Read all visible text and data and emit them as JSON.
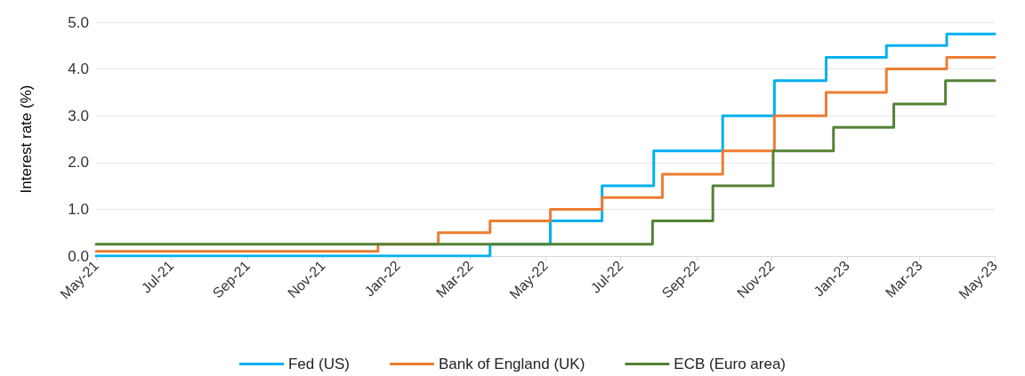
{
  "chart_data": {
    "type": "step",
    "ylabel": "Interest rate (%)",
    "series": [
      {
        "name": "Fed (US)",
        "color": "#00b0f0",
        "x": [
          "2021-05-01",
          "2022-03-17",
          "2022-05-05",
          "2022-06-16",
          "2022-07-28",
          "2022-09-22",
          "2022-11-03",
          "2022-12-15",
          "2023-02-02",
          "2023-03-23",
          "2023-05-01"
        ],
        "values": [
          0,
          0.25,
          0.75,
          1.5,
          2.25,
          3.0,
          3.75,
          4.25,
          4.5,
          4.75,
          4.75
        ]
      },
      {
        "name": "Bank of England (UK)",
        "color": "#ed7d31",
        "x": [
          "2021-05-01",
          "2021-12-16",
          "2022-02-03",
          "2022-03-17",
          "2022-05-05",
          "2022-06-16",
          "2022-08-04",
          "2022-09-22",
          "2022-11-03",
          "2022-12-15",
          "2023-02-02",
          "2023-03-23",
          "2023-05-01"
        ],
        "values": [
          0.1,
          0.25,
          0.5,
          0.75,
          1.0,
          1.25,
          1.75,
          2.25,
          3.0,
          3.5,
          4.0,
          4.25,
          4.25
        ]
      },
      {
        "name": "ECB (Euro area)",
        "color": "#548235",
        "x": [
          "2021-05-01",
          "2022-07-27",
          "2022-09-14",
          "2022-11-02",
          "2022-12-21",
          "2023-02-08",
          "2023-03-22",
          "2023-05-01"
        ],
        "values": [
          0.25,
          0.75,
          1.5,
          2.25,
          2.75,
          3.25,
          3.75,
          3.75
        ]
      }
    ],
    "xlim": [
      "2021-05-01",
      "2023-05-01"
    ],
    "xticks": [
      {
        "value": "2021-05-01",
        "label": "May-21"
      },
      {
        "value": "2021-07-01",
        "label": "Jul-21"
      },
      {
        "value": "2021-09-01",
        "label": "Sep-21"
      },
      {
        "value": "2021-11-01",
        "label": "Nov-21"
      },
      {
        "value": "2022-01-01",
        "label": "Jan-22"
      },
      {
        "value": "2022-03-01",
        "label": "Mar-22"
      },
      {
        "value": "2022-05-01",
        "label": "May-22"
      },
      {
        "value": "2022-07-01",
        "label": "Jul-22"
      },
      {
        "value": "2022-09-01",
        "label": "Sep-22"
      },
      {
        "value": "2022-11-01",
        "label": "Nov-22"
      },
      {
        "value": "2023-01-01",
        "label": "Jan-23"
      },
      {
        "value": "2023-03-01",
        "label": "Mar-23"
      },
      {
        "value": "2023-05-01",
        "label": "May-23"
      }
    ],
    "ylim": [
      0,
      5
    ],
    "yticks": [
      {
        "value": 0,
        "label": "0.0"
      },
      {
        "value": 1,
        "label": "1.0"
      },
      {
        "value": 2,
        "label": "2.0"
      },
      {
        "value": 3,
        "label": "3.0"
      },
      {
        "value": 4,
        "label": "4.0"
      },
      {
        "value": 5,
        "label": "5.0"
      }
    ],
    "grid": "y",
    "legend": "bottom",
    "marker": "none",
    "line_style": "solid"
  }
}
